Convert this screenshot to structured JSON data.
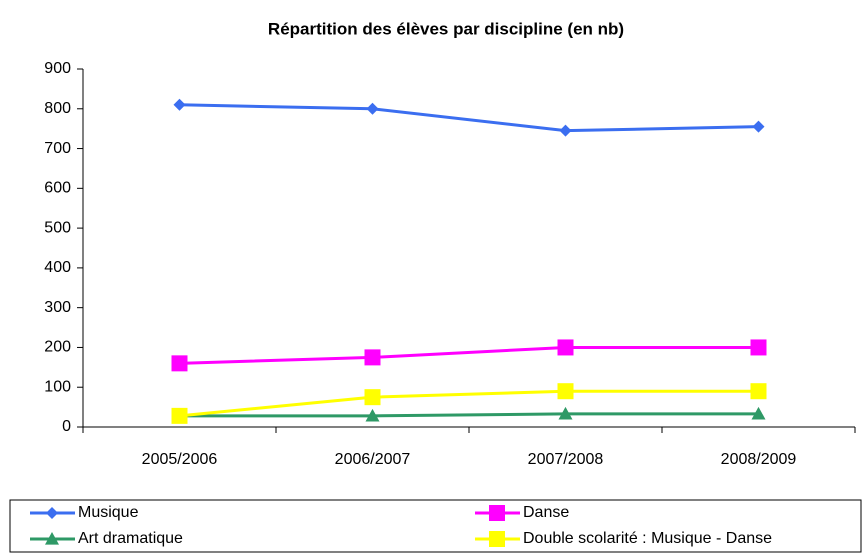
{
  "chart_data": {
    "type": "line",
    "title": "Répartition des élèves par discipline (en nb)",
    "categories": [
      "2005/2006",
      "2006/2007",
      "2007/2008",
      "2008/2009"
    ],
    "series": [
      {
        "name": "Musique",
        "color": "#3b6ef0",
        "marker": "diamond",
        "values": [
          810,
          800,
          745,
          755
        ]
      },
      {
        "name": "Danse",
        "color": "#ff00ff",
        "marker": "square",
        "values": [
          160,
          175,
          200,
          200
        ]
      },
      {
        "name": "Art dramatique",
        "color": "#2e9966",
        "marker": "triangle",
        "values": [
          28,
          28,
          33,
          33
        ]
      },
      {
        "name": "Double scolarité  : Musique - Danse",
        "color": "#ffff00",
        "marker": "square",
        "values": [
          28,
          75,
          90,
          90
        ]
      }
    ],
    "ylim": [
      0,
      900
    ],
    "yticks": [
      0,
      100,
      200,
      300,
      400,
      500,
      600,
      700,
      800,
      900
    ],
    "grid": false,
    "legend": "bottom"
  }
}
